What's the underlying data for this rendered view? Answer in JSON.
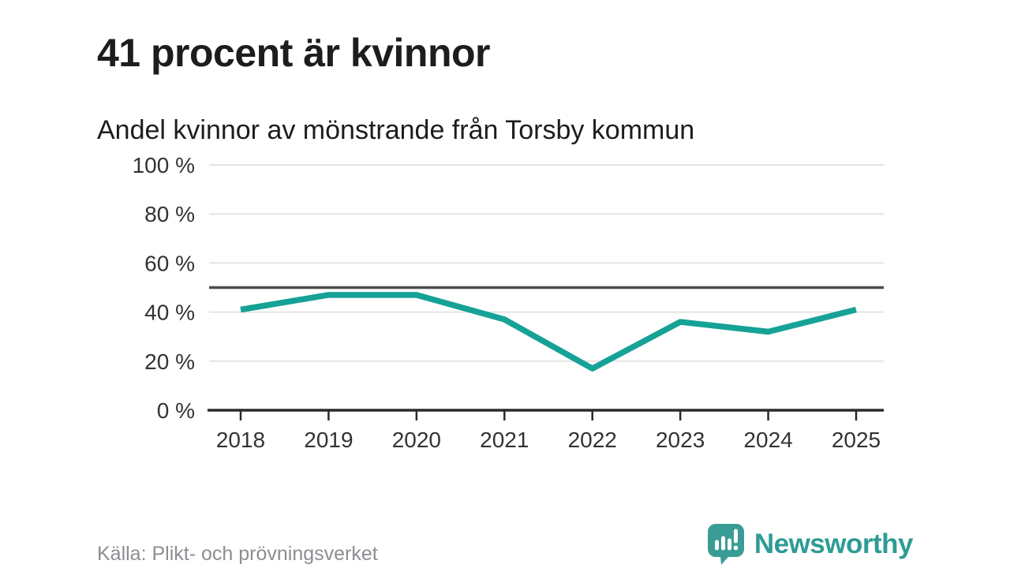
{
  "header": {
    "title": "41 procent är kvinnor",
    "subtitle": "Andel kvinnor av mönstrande från Torsby kommun"
  },
  "chart_data": {
    "type": "line",
    "title": "41 procent är kvinnor",
    "subtitle": "Andel kvinnor av mönstrande från Torsby kommun",
    "categories": [
      "2018",
      "2019",
      "2020",
      "2021",
      "2022",
      "2023",
      "2024",
      "2025"
    ],
    "series": [
      {
        "name": "Andel kvinnor av mönstrande",
        "values": [
          41,
          47,
          47,
          37,
          17,
          36,
          32,
          41
        ]
      }
    ],
    "xlabel": "",
    "ylabel": "",
    "ylim": [
      0,
      100
    ],
    "yticks": [
      0,
      20,
      40,
      60,
      80,
      100
    ],
    "ytick_suffix": " %",
    "reference_line": 50,
    "grid": true,
    "legend_position": "none",
    "line_color": "#16a296",
    "reference_line_color": "#4d4d4d",
    "gridline_color": "#e4e4e4",
    "axis_color": "#2b2b2b",
    "tick_label_color": "#333333"
  },
  "footer": {
    "source": "Källa: Plikt- och prövningsverket",
    "brand": "Newsworthy",
    "brand_color": "#2e9c94",
    "logo_icon": "newsworthy-speech-bubble-bar-chart-icon",
    "logo_color": "#3a9d95"
  }
}
